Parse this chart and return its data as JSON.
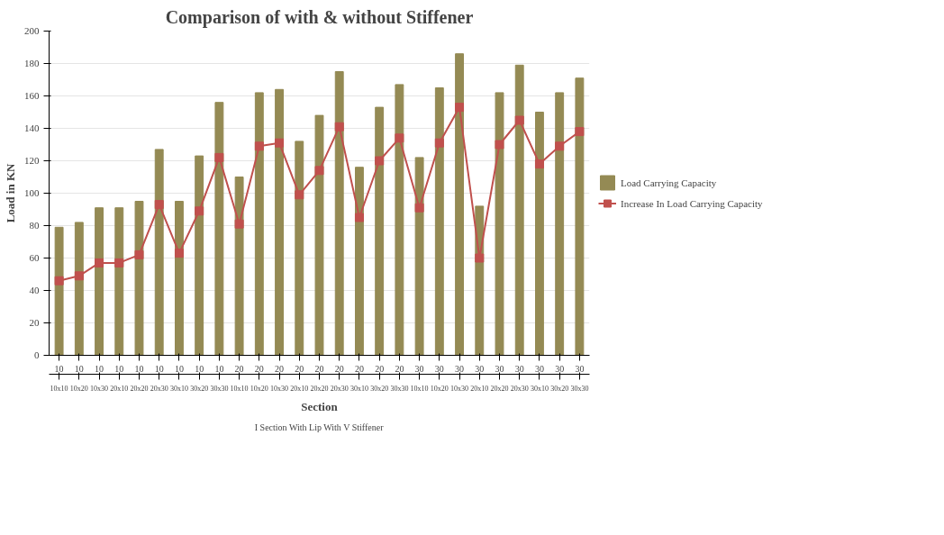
{
  "chart_data": {
    "type": "bar",
    "title": "Comparison of with & without Stiffener",
    "xlabel": "Section",
    "ylabel": "Load in KN",
    "categories": [
      "10\n10x10",
      "10\n10x20",
      "10\n10x30",
      "10\n20x10",
      "10\n20x20",
      "10\n20x30",
      "10\n30x10",
      "10\n30x20",
      "10\n30x30",
      "20\n10x10",
      "20\n10x20",
      "20\n10x30",
      "20\n20x10",
      "20\n20x20",
      "20\n20x30",
      "20\n30x10",
      "20\n30x20",
      "20\n30x30",
      "30\n10x10",
      "30\n10x20",
      "30\n10x30",
      "30\n20x10",
      "30\n20x20",
      "30\n20x30",
      "30\n30x10",
      "30\n30x20",
      "30\n30x30"
    ],
    "series": [
      {
        "name": "Load Carrying Capacity",
        "color": "#948a54",
        "values": [
          79,
          82,
          91,
          91,
          95,
          127,
          95,
          123,
          156,
          110,
          162,
          164,
          132,
          148,
          175,
          116,
          153,
          167,
          122,
          165,
          186,
          92,
          162,
          179,
          150,
          162,
          171
        ]
      },
      {
        "name": "Increase In Load Carrying Capacity",
        "type": "line",
        "color": "#c0504d",
        "marker": "square",
        "values": [
          46,
          49,
          57,
          57,
          62,
          93,
          63,
          89,
          122,
          81,
          129,
          131,
          99,
          114,
          141,
          85,
          120,
          134,
          91,
          131,
          153,
          60,
          130,
          145,
          118,
          129,
          138
        ]
      }
    ],
    "annotations": [
      "I Section With Lip With V Stiffener"
    ],
    "ylim": [
      0,
      200
    ],
    "yticks": [
      0,
      20,
      40,
      60,
      80,
      100,
      120,
      140,
      160,
      180,
      200
    ],
    "grid": "y",
    "legend": "right"
  }
}
